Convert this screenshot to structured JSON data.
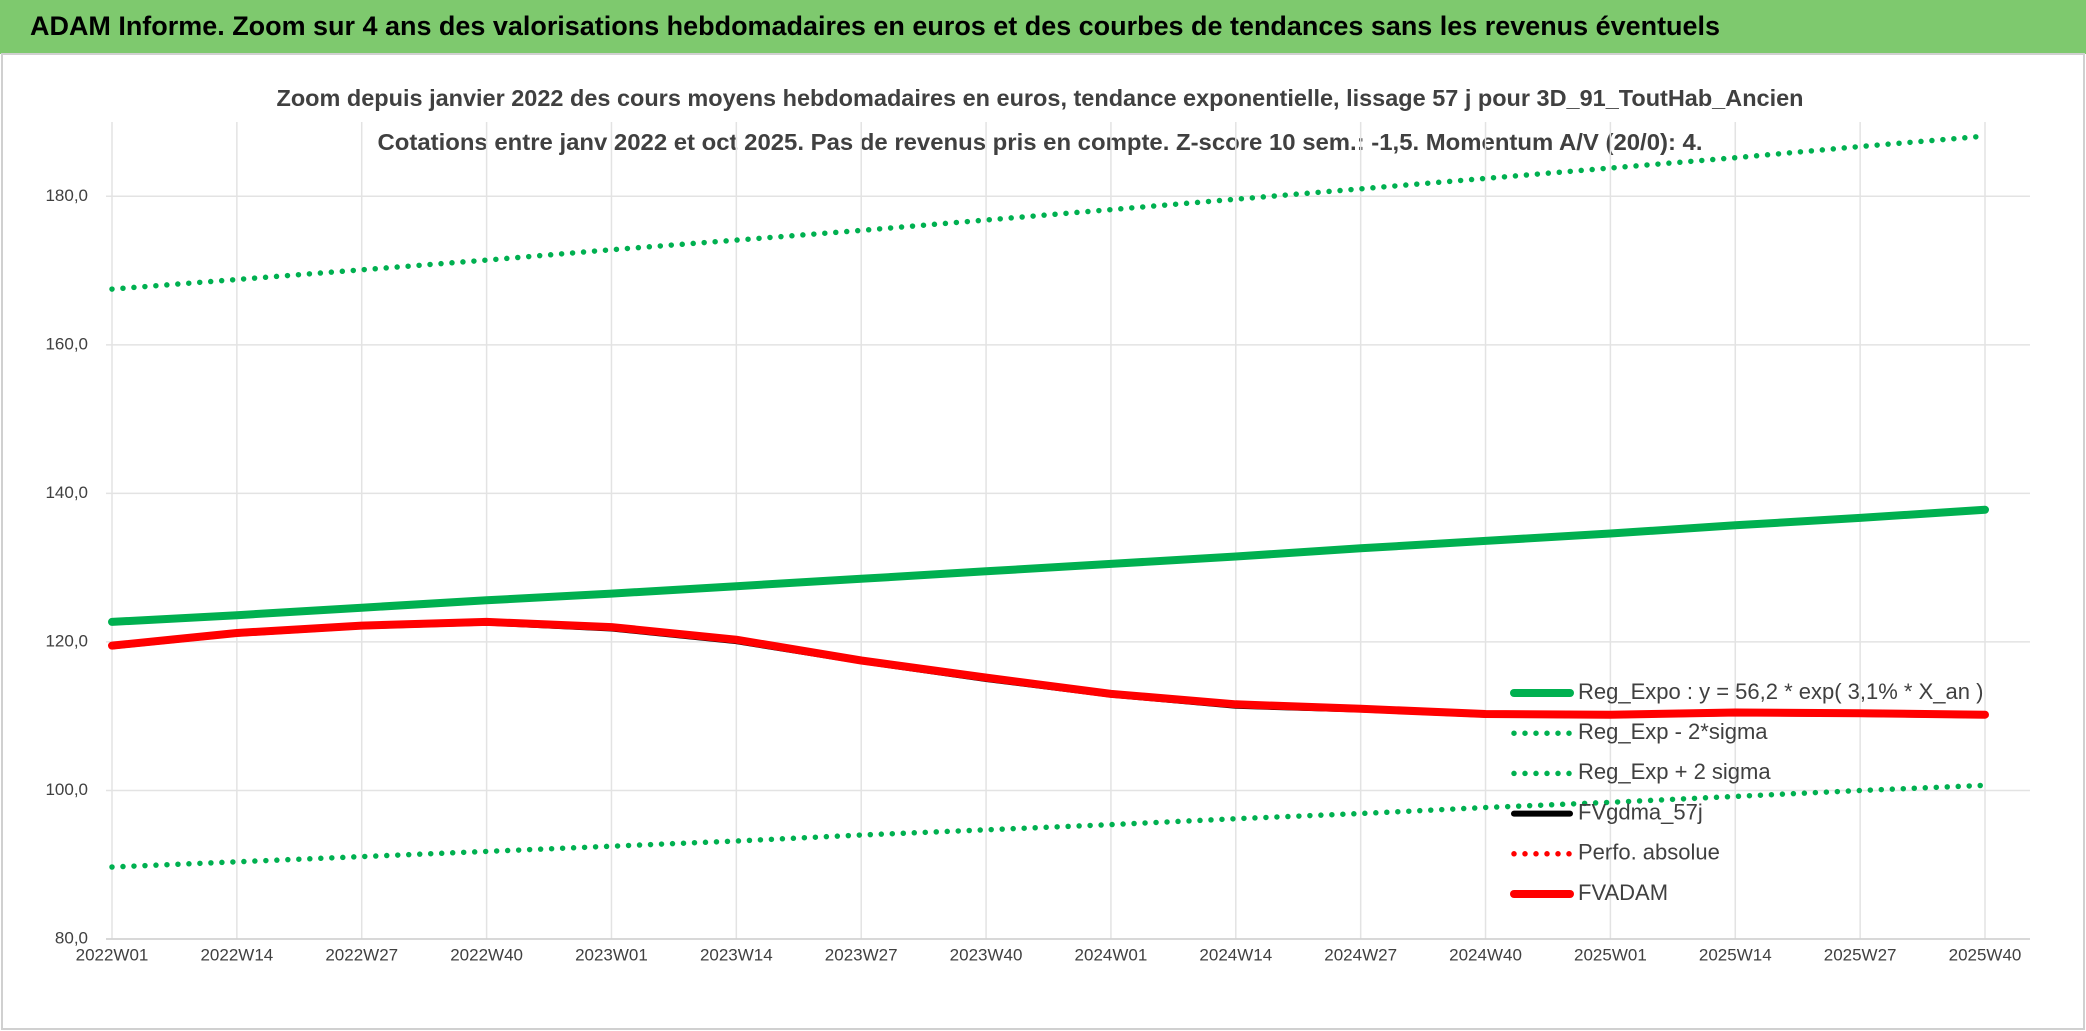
{
  "header": {
    "title": "ADAM Informe. Zoom sur 4 ans des valorisations hebdomadaires en euros et des courbes de tendances sans les revenus éventuels"
  },
  "chart_data": {
    "type": "line",
    "title": "Zoom depuis janvier 2022 des cours moyens hebdomadaires en euros, tendance exponentielle, lissage 57 j pour 3D_91_ToutHab_Ancien",
    "subtitle": "Cotations entre janv 2022 et oct 2025. Pas de revenus pris en compte. Z-score 10 sem.: -1,5. Momentum A/V (20/0): 4.",
    "categories": [
      "2022W01",
      "2022W14",
      "2022W27",
      "2022W40",
      "2023W01",
      "2023W14",
      "2023W27",
      "2023W40",
      "2024W01",
      "2024W14",
      "2024W27",
      "2024W40",
      "2025W01",
      "2025W14",
      "2025W27",
      "2025W40"
    ],
    "ylim": [
      80,
      190
    ],
    "yticks": [
      {
        "value": 80,
        "label": "80,0"
      },
      {
        "value": 100,
        "label": "100,0"
      },
      {
        "value": 120,
        "label": "120,0"
      },
      {
        "value": 140,
        "label": "140,0"
      },
      {
        "value": 160,
        "label": "160,0"
      },
      {
        "value": 180,
        "label": "180,0"
      }
    ],
    "grid": true,
    "legend": "lower right",
    "series": [
      {
        "name": "Reg_Expo : y = 56,2 * exp( 3,1% * X_an )",
        "color": "#00b050",
        "line_style": "solid",
        "values": [
          122.7,
          123.6,
          124.6,
          125.6,
          126.5,
          127.5,
          128.5,
          129.5,
          130.5,
          131.5,
          132.6,
          133.6,
          134.6,
          135.7,
          136.7,
          137.8
        ]
      },
      {
        "name": "Reg_Exp - 2*sigma",
        "color": "#00b050",
        "line_style": "dotted",
        "values": [
          89.7,
          90.4,
          91.1,
          91.8,
          92.5,
          93.2,
          94.0,
          94.7,
          95.4,
          96.2,
          96.9,
          97.7,
          98.4,
          99.2,
          100.0,
          100.7
        ]
      },
      {
        "name": "Reg_Exp + 2 sigma",
        "color": "#00b050",
        "line_style": "dotted",
        "values": [
          167.5,
          168.8,
          170.1,
          171.4,
          172.8,
          174.1,
          175.4,
          176.8,
          178.2,
          179.6,
          181.0,
          182.4,
          183.8,
          185.2,
          186.7,
          188.1
        ]
      },
      {
        "name": "FVgdma_57j",
        "color": "#000000",
        "line_style": "solid",
        "values": [
          119.4,
          121.1,
          122.1,
          122.6,
          121.8,
          120.1,
          117.4,
          115.0,
          112.9,
          111.4,
          110.9,
          110.2,
          110.1,
          110.4,
          110.3,
          110.1
        ]
      },
      {
        "name": "Perfo. absolue",
        "color": "#ff0000",
        "line_style": "dotted",
        "values": [
          null,
          null,
          null,
          null,
          null,
          null,
          null,
          null,
          null,
          null,
          null,
          null,
          null,
          null,
          null,
          null
        ]
      },
      {
        "name": "FVADAM",
        "color": "#ff0000",
        "line_style": "solid",
        "values": [
          119.5,
          121.2,
          122.2,
          122.7,
          122.0,
          120.3,
          117.5,
          115.2,
          113.0,
          111.6,
          111.0,
          110.3,
          110.2,
          110.5,
          110.4,
          110.2
        ]
      }
    ]
  }
}
